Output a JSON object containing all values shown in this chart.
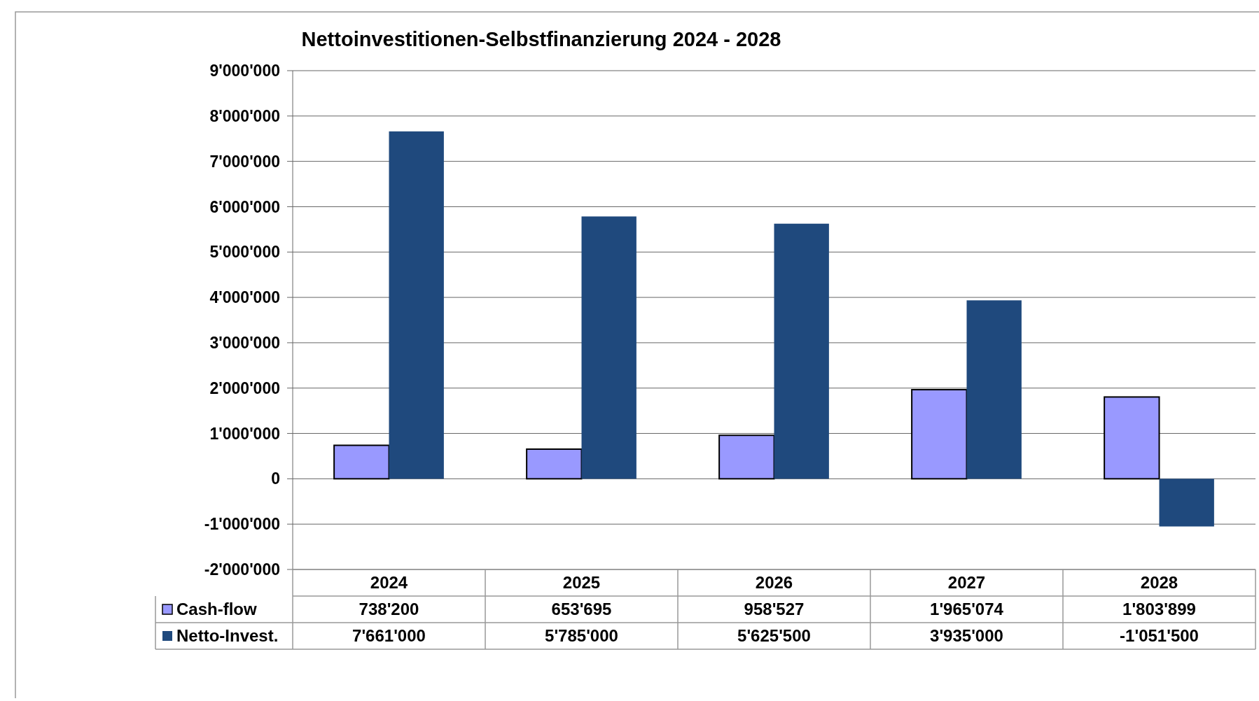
{
  "chart_data": {
    "type": "bar",
    "title": "Nettoinvestitionen-Selbstfinanzierung 2024 - 2028",
    "categories": [
      "2024",
      "2025",
      "2026",
      "2027",
      "2028"
    ],
    "series": [
      {
        "name": "Cash-flow",
        "color": "#9999ff",
        "values": [
          738200,
          653695,
          958527,
          1965074,
          1803899
        ],
        "value_labels": [
          "738'200",
          "653'695",
          "958'527",
          "1'965'074",
          "1'803'899"
        ]
      },
      {
        "name": "Netto-Invest.",
        "color": "#1f497d",
        "values": [
          7661000,
          5785000,
          5625500,
          3935000,
          -1051500
        ],
        "value_labels": [
          "7'661'000",
          "5'785'000",
          "5'625'500",
          "3'935'000",
          "-1'051'500"
        ]
      }
    ],
    "ylim": [
      -2000000,
      9000000
    ],
    "yticks": [
      {
        "value": -2000000,
        "label": "-2'000'000"
      },
      {
        "value": -1000000,
        "label": "-1'000'000"
      },
      {
        "value": 0,
        "label": "0"
      },
      {
        "value": 1000000,
        "label": "1'000'000"
      },
      {
        "value": 2000000,
        "label": "2'000'000"
      },
      {
        "value": 3000000,
        "label": "3'000'000"
      },
      {
        "value": 4000000,
        "label": "4'000'000"
      },
      {
        "value": 5000000,
        "label": "5'000'000"
      },
      {
        "value": 6000000,
        "label": "6'000'000"
      },
      {
        "value": 7000000,
        "label": "7'000'000"
      },
      {
        "value": 8000000,
        "label": "8'000'000"
      },
      {
        "value": 9000000,
        "label": "9'000'000"
      }
    ],
    "grid": "y",
    "legend": "bottom"
  }
}
